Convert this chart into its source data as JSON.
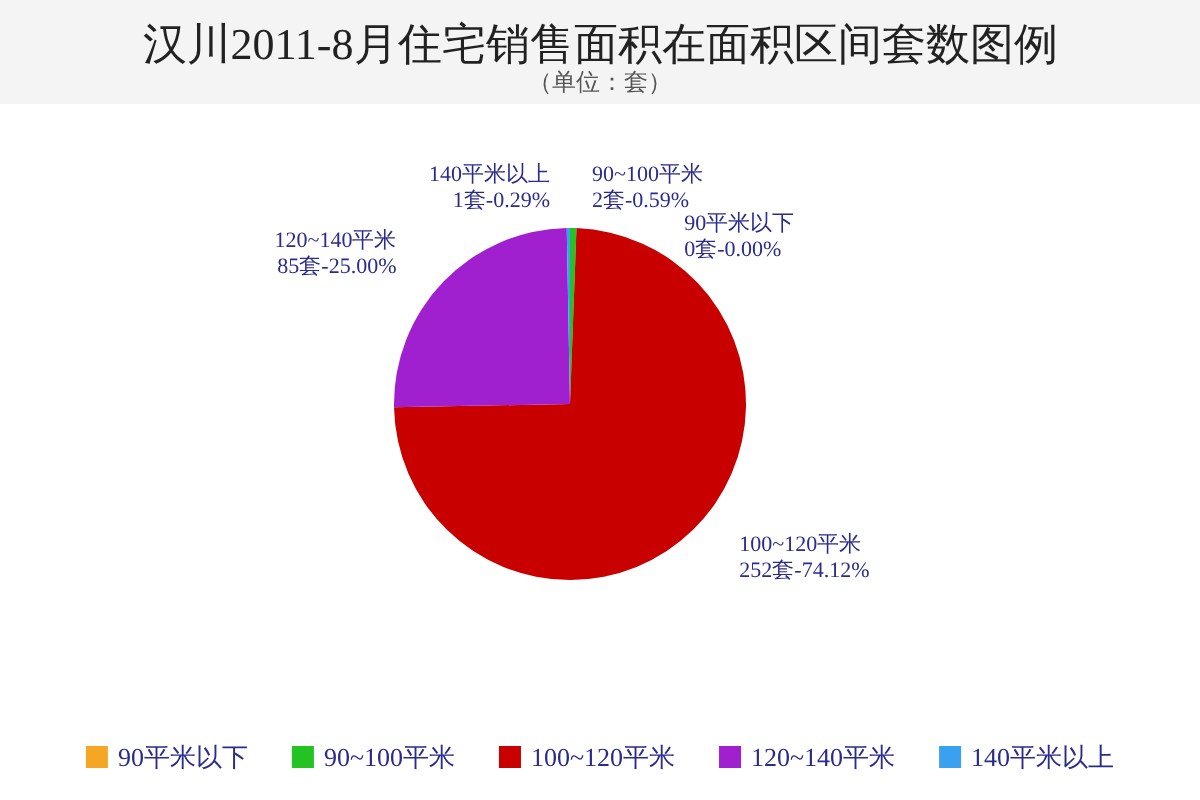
{
  "chart_data": {
    "type": "pie",
    "title": "汉川2011-8月住宅销售面积在面积区间套数图例",
    "subtitle": "（单位：套）",
    "categories": [
      "90平米以下",
      "90~100平米",
      "100~120平米",
      "120~140平米",
      "140平米以上"
    ],
    "values": [
      0,
      2,
      252,
      85,
      1
    ],
    "colors": [
      "#f5a623",
      "#22c322",
      "#c80000",
      "#a020d0",
      "#3aa0f0"
    ],
    "value_labels": [
      "0套-0.00%",
      "2套-0.59%",
      "252套-74.12%",
      "85套-25.00%",
      "1套-0.29%"
    ],
    "legend": "bottom"
  }
}
